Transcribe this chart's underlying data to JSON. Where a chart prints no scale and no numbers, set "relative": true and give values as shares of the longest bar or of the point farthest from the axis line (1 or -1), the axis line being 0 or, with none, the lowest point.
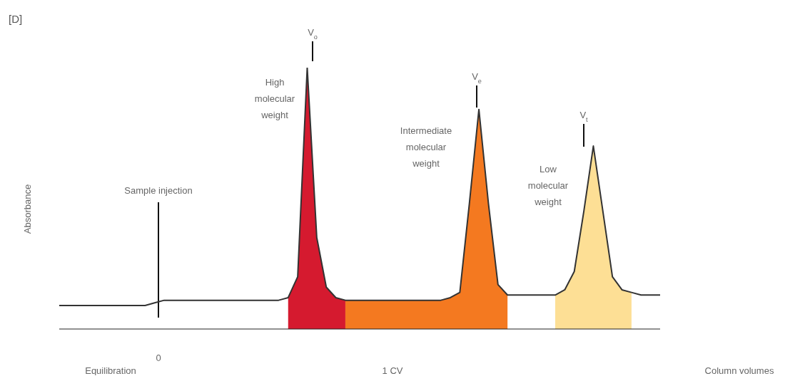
{
  "chart_data": {
    "type": "line",
    "title": "[D]",
    "ylabel": "Absorbance",
    "relative": true,
    "legend": false,
    "grid": false,
    "marker": "none",
    "line_style": "solid",
    "categories": [
      null,
      null,
      null,
      null,
      null,
      null,
      null,
      null,
      null,
      null,
      null,
      null,
      null,
      null,
      null,
      null,
      null,
      null,
      null,
      null,
      null,
      null,
      null,
      null,
      null,
      null,
      null,
      null,
      null,
      null,
      null,
      null,
      null,
      null,
      null,
      null,
      null,
      null,
      null,
      null,
      null,
      null,
      null,
      null,
      null,
      null,
      null,
      null,
      null,
      null,
      null,
      null,
      null,
      null,
      null,
      null,
      null,
      null,
      null,
      null,
      null,
      null,
      null,
      null
    ],
    "series": [
      {
        "type": "area",
        "color": "#d51a2f",
        "values": [
          null,
          null,
          null,
          null,
          null,
          null,
          null,
          null,
          null,
          null,
          null,
          null,
          null,
          null,
          null,
          null,
          null,
          null,
          null,
          null,
          null,
          null,
          null,
          null,
          0.12,
          0.2,
          1.0,
          0.35,
          0.16,
          0.12,
          0.11,
          null,
          null,
          null,
          null,
          null,
          null,
          null,
          null,
          null,
          null,
          null,
          null,
          null,
          null,
          null,
          null,
          null,
          null,
          null,
          null,
          null,
          null,
          null,
          null,
          null,
          null,
          null,
          null,
          null,
          null,
          null,
          null,
          null
        ]
      },
      {
        "type": "area",
        "color": "#f47920",
        "values": [
          null,
          null,
          null,
          null,
          null,
          null,
          null,
          null,
          null,
          null,
          null,
          null,
          null,
          null,
          null,
          null,
          null,
          null,
          null,
          null,
          null,
          null,
          null,
          null,
          null,
          null,
          null,
          null,
          null,
          null,
          0.11,
          0.11,
          0.11,
          0.11,
          0.11,
          0.11,
          0.11,
          0.11,
          0.11,
          0.11,
          0.11,
          0.12,
          0.14,
          0.48,
          0.84,
          0.48,
          0.17,
          0.13,
          null,
          null,
          null,
          null,
          null,
          null,
          null,
          null,
          null,
          null,
          null,
          null,
          null,
          null,
          null,
          null
        ]
      },
      {
        "type": "area",
        "color": "#fddf95",
        "values": [
          null,
          null,
          null,
          null,
          null,
          null,
          null,
          null,
          null,
          null,
          null,
          null,
          null,
          null,
          null,
          null,
          null,
          null,
          null,
          null,
          null,
          null,
          null,
          null,
          null,
          null,
          null,
          null,
          null,
          null,
          null,
          null,
          null,
          null,
          null,
          null,
          null,
          null,
          null,
          null,
          null,
          null,
          null,
          null,
          null,
          null,
          null,
          null,
          null,
          null,
          null,
          null,
          0.13,
          0.15,
          0.22,
          0.45,
          0.7,
          0.45,
          0.2,
          0.15,
          0.14,
          null,
          null,
          null
        ]
      },
      {
        "color": "#333333",
        "values": [
          0.09,
          0.09,
          0.09,
          0.09,
          0.09,
          0.09,
          0.09,
          0.09,
          0.09,
          0.09,
          0.1,
          0.11,
          0.11,
          0.11,
          0.11,
          0.11,
          0.11,
          0.11,
          0.11,
          0.11,
          0.11,
          0.11,
          0.11,
          0.11,
          0.12,
          0.2,
          1.0,
          0.35,
          0.16,
          0.12,
          0.11,
          0.11,
          0.11,
          0.11,
          0.11,
          0.11,
          0.11,
          0.11,
          0.11,
          0.11,
          0.11,
          0.12,
          0.14,
          0.48,
          0.84,
          0.48,
          0.17,
          0.13,
          0.13,
          0.13,
          0.13,
          0.13,
          0.13,
          0.15,
          0.22,
          0.45,
          0.7,
          0.45,
          0.2,
          0.15,
          0.14,
          0.13,
          0.13,
          0.13
        ]
      }
    ],
    "annotations": [
      "Sample injection",
      "0",
      "V$_{o}$",
      "High molecular weight",
      "V$_{e}$",
      "Intermediate molecular weight",
      "V$_{t}$",
      "Low molecular weight",
      "Equilibration",
      "1 CV",
      "Column volumes"
    ]
  }
}
